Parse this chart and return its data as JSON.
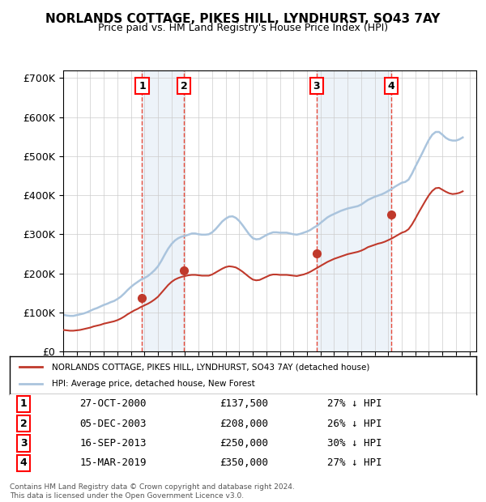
{
  "title_line1": "NORLANDS COTTAGE, PIKES HILL, LYNDHURST, SO43 7AY",
  "title_line2": "Price paid vs. HM Land Registry's House Price Index (HPI)",
  "ylabel": "",
  "xlim_start": 1995.0,
  "xlim_end": 2025.5,
  "ylim_min": 0,
  "ylim_max": 720000,
  "yticks": [
    0,
    100000,
    200000,
    300000,
    400000,
    500000,
    600000,
    700000
  ],
  "ytick_labels": [
    "£0",
    "£100K",
    "£200K",
    "£300K",
    "£400K",
    "£500K",
    "£600K",
    "£700K"
  ],
  "hpi_color": "#aac4dd",
  "price_color": "#c0392b",
  "sale_marker_color": "#c0392b",
  "vline_color": "#e74c3c",
  "shade_color": "#dce9f5",
  "legend_box_color": "#000000",
  "background_color": "#ffffff",
  "grid_color": "#cccccc",
  "sales": [
    {
      "num": 1,
      "year": 2000.83,
      "price": 137500,
      "label": "1",
      "x_label": 2000.5
    },
    {
      "num": 2,
      "year": 2003.92,
      "price": 208000,
      "label": "2",
      "x_label": 2003.92
    },
    {
      "num": 3,
      "year": 2013.71,
      "price": 250000,
      "label": "3",
      "x_label": 2013.71
    },
    {
      "num": 4,
      "year": 2019.21,
      "price": 350000,
      "label": "4",
      "x_label": 2019.21
    }
  ],
  "sale_annotations": [
    {
      "num": "1",
      "date": "27-OCT-2000",
      "price": "£137,500",
      "pct": "27% ↓ HPI"
    },
    {
      "num": "2",
      "date": "05-DEC-2003",
      "price": "£208,000",
      "pct": "26% ↓ HPI"
    },
    {
      "num": "3",
      "date": "16-SEP-2013",
      "price": "£250,000",
      "pct": "30% ↓ HPI"
    },
    {
      "num": "4",
      "date": "15-MAR-2019",
      "price": "£350,000",
      "pct": "27% ↓ HPI"
    }
  ],
  "legend_entries": [
    {
      "label": "NORLANDS COTTAGE, PIKES HILL, LYNDHURST, SO43 7AY (detached house)",
      "color": "#c0392b",
      "lw": 2
    },
    {
      "label": "HPI: Average price, detached house, New Forest",
      "color": "#aac4dd",
      "lw": 2
    }
  ],
  "footer": "Contains HM Land Registry data © Crown copyright and database right 2024.\nThis data is licensed under the Open Government Licence v3.0.",
  "hpi_data_x": [
    1995.0,
    1995.25,
    1995.5,
    1995.75,
    1996.0,
    1996.25,
    1996.5,
    1996.75,
    1997.0,
    1997.25,
    1997.5,
    1997.75,
    1998.0,
    1998.25,
    1998.5,
    1998.75,
    1999.0,
    1999.25,
    1999.5,
    1999.75,
    2000.0,
    2000.25,
    2000.5,
    2000.75,
    2001.0,
    2001.25,
    2001.5,
    2001.75,
    2002.0,
    2002.25,
    2002.5,
    2002.75,
    2003.0,
    2003.25,
    2003.5,
    2003.75,
    2004.0,
    2004.25,
    2004.5,
    2004.75,
    2005.0,
    2005.25,
    2005.5,
    2005.75,
    2006.0,
    2006.25,
    2006.5,
    2006.75,
    2007.0,
    2007.25,
    2007.5,
    2007.75,
    2008.0,
    2008.25,
    2008.5,
    2008.75,
    2009.0,
    2009.25,
    2009.5,
    2009.75,
    2010.0,
    2010.25,
    2010.5,
    2010.75,
    2011.0,
    2011.25,
    2011.5,
    2011.75,
    2012.0,
    2012.25,
    2012.5,
    2012.75,
    2013.0,
    2013.25,
    2013.5,
    2013.75,
    2014.0,
    2014.25,
    2014.5,
    2014.75,
    2015.0,
    2015.25,
    2015.5,
    2015.75,
    2016.0,
    2016.25,
    2016.5,
    2016.75,
    2017.0,
    2017.25,
    2017.5,
    2017.75,
    2018.0,
    2018.25,
    2018.5,
    2018.75,
    2019.0,
    2019.25,
    2019.5,
    2019.75,
    2020.0,
    2020.25,
    2020.5,
    2020.75,
    2021.0,
    2021.25,
    2021.5,
    2021.75,
    2022.0,
    2022.25,
    2022.5,
    2022.75,
    2023.0,
    2023.25,
    2023.5,
    2023.75,
    2024.0,
    2024.25,
    2024.5
  ],
  "hpi_data_y": [
    94000,
    92000,
    91000,
    91000,
    93000,
    95000,
    97000,
    100000,
    104000,
    108000,
    111000,
    115000,
    119000,
    122000,
    126000,
    129000,
    134000,
    140000,
    148000,
    157000,
    165000,
    172000,
    178000,
    184000,
    188000,
    193000,
    200000,
    208000,
    218000,
    232000,
    248000,
    263000,
    275000,
    284000,
    290000,
    294000,
    296000,
    299000,
    302000,
    302000,
    300000,
    299000,
    299000,
    300000,
    305000,
    313000,
    323000,
    333000,
    340000,
    345000,
    346000,
    342000,
    334000,
    323000,
    311000,
    299000,
    290000,
    287000,
    288000,
    293000,
    298000,
    302000,
    305000,
    305000,
    304000,
    304000,
    304000,
    302000,
    300000,
    299000,
    301000,
    304000,
    307000,
    311000,
    317000,
    322000,
    329000,
    336000,
    343000,
    348000,
    352000,
    356000,
    360000,
    363000,
    366000,
    368000,
    370000,
    372000,
    376000,
    382000,
    388000,
    392000,
    396000,
    399000,
    402000,
    406000,
    411000,
    416000,
    422000,
    427000,
    432000,
    434000,
    440000,
    455000,
    473000,
    490000,
    507000,
    525000,
    542000,
    555000,
    562000,
    562000,
    555000,
    547000,
    542000,
    540000,
    540000,
    543000,
    548000
  ],
  "price_data_x": [
    1995.0,
    1995.25,
    1995.5,
    1995.75,
    1996.0,
    1996.25,
    1996.5,
    1996.75,
    1997.0,
    1997.25,
    1997.5,
    1997.75,
    1998.0,
    1998.25,
    1998.5,
    1998.75,
    1999.0,
    1999.25,
    1999.5,
    1999.75,
    2000.0,
    2000.25,
    2000.5,
    2000.75,
    2001.0,
    2001.25,
    2001.5,
    2001.75,
    2002.0,
    2002.25,
    2002.5,
    2002.75,
    2003.0,
    2003.25,
    2003.5,
    2003.75,
    2004.0,
    2004.25,
    2004.5,
    2004.75,
    2005.0,
    2005.25,
    2005.5,
    2005.75,
    2006.0,
    2006.25,
    2006.5,
    2006.75,
    2007.0,
    2007.25,
    2007.5,
    2007.75,
    2008.0,
    2008.25,
    2008.5,
    2008.75,
    2009.0,
    2009.25,
    2009.5,
    2009.75,
    2010.0,
    2010.25,
    2010.5,
    2010.75,
    2011.0,
    2011.25,
    2011.5,
    2011.75,
    2012.0,
    2012.25,
    2012.5,
    2012.75,
    2013.0,
    2013.25,
    2013.5,
    2013.75,
    2014.0,
    2014.25,
    2014.5,
    2014.75,
    2015.0,
    2015.25,
    2015.5,
    2015.75,
    2016.0,
    2016.25,
    2016.5,
    2016.75,
    2017.0,
    2017.25,
    2017.5,
    2017.75,
    2018.0,
    2018.25,
    2018.5,
    2018.75,
    2019.0,
    2019.25,
    2019.5,
    2019.75,
    2020.0,
    2020.25,
    2020.5,
    2020.75,
    2021.0,
    2021.25,
    2021.5,
    2021.75,
    2022.0,
    2022.25,
    2022.5,
    2022.75,
    2023.0,
    2023.25,
    2023.5,
    2023.75,
    2024.0,
    2024.25,
    2024.5
  ],
  "price_data_y": [
    55000,
    54000,
    53000,
    53000,
    54000,
    55000,
    57000,
    59000,
    61000,
    64000,
    66000,
    68000,
    71000,
    73000,
    75000,
    77000,
    80000,
    84000,
    89000,
    95000,
    100000,
    105000,
    109000,
    114000,
    118000,
    122000,
    127000,
    133000,
    140000,
    150000,
    160000,
    170000,
    178000,
    184000,
    188000,
    191000,
    193000,
    195000,
    196000,
    196000,
    195000,
    194000,
    194000,
    194000,
    197000,
    202000,
    207000,
    212000,
    216000,
    218000,
    217000,
    215000,
    210000,
    204000,
    197000,
    190000,
    184000,
    182000,
    183000,
    187000,
    191000,
    195000,
    197000,
    197000,
    196000,
    196000,
    196000,
    195000,
    194000,
    193000,
    195000,
    197000,
    200000,
    204000,
    209000,
    214000,
    219000,
    224000,
    229000,
    233000,
    237000,
    240000,
    243000,
    246000,
    249000,
    251000,
    253000,
    255000,
    258000,
    262000,
    267000,
    270000,
    273000,
    276000,
    278000,
    281000,
    285000,
    289000,
    294000,
    299000,
    304000,
    307000,
    313000,
    325000,
    340000,
    356000,
    371000,
    386000,
    400000,
    411000,
    418000,
    419000,
    414000,
    409000,
    405000,
    403000,
    404000,
    406000,
    410000
  ]
}
